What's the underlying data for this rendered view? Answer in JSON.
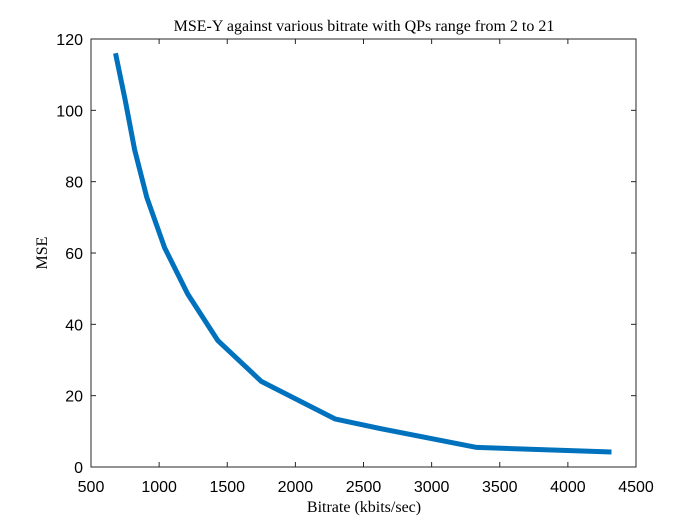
{
  "chart_data": {
    "type": "line",
    "title": "MSE-Y against various bitrate with QPs range from 2 to 21",
    "xlabel": "Bitrate (kbits/sec)",
    "ylabel": "MSE",
    "xlim": [
      500,
      4500
    ],
    "ylim": [
      0,
      120
    ],
    "xticks": [
      500,
      1000,
      1500,
      2000,
      2500,
      3000,
      3500,
      4000,
      4500
    ],
    "yticks": [
      0,
      20,
      40,
      60,
      80,
      100,
      120
    ],
    "grid": false,
    "legend": "none",
    "series": [
      {
        "color": "#0072BD",
        "x": [
          680,
          750,
          820,
          910,
          1040,
          1210,
          1430,
          1750,
          2290,
          2660,
          3330,
          4320
        ],
        "y": [
          116,
          103,
          89,
          75.5,
          61.5,
          48.5,
          35.5,
          24,
          13.5,
          10.5,
          5.5,
          4.2
        ]
      }
    ]
  }
}
